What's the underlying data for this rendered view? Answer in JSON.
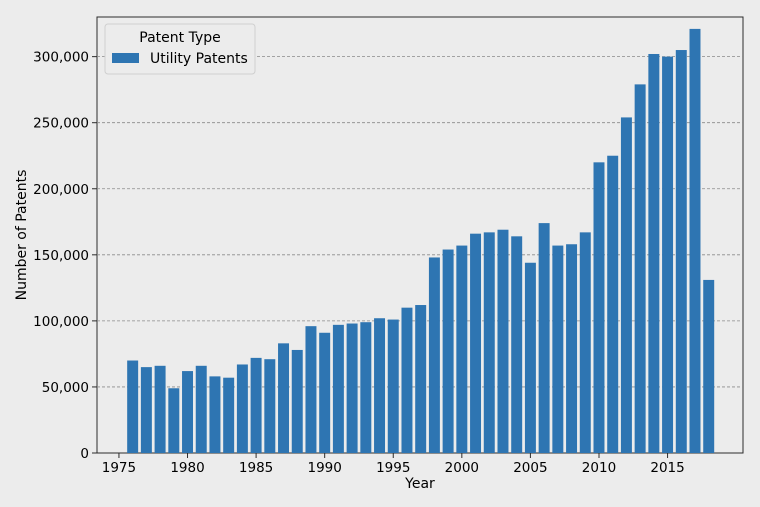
{
  "chart_data": {
    "type": "bar",
    "xlabel": "Year",
    "ylabel": "Number of Patents",
    "xlim": [
      1973.4,
      2020.5
    ],
    "ylim": [
      0,
      330000
    ],
    "xticks": [
      1975,
      1980,
      1985,
      1990,
      1995,
      2000,
      2005,
      2010,
      2015
    ],
    "yticks": [
      0,
      50000,
      100000,
      150000,
      200000,
      250000,
      300000
    ],
    "ytick_labels": [
      "0",
      "50,000",
      "100,000",
      "150,000",
      "200,000",
      "250,000",
      "300,000"
    ],
    "grid": "y-dashed",
    "legend": {
      "title": "Patent Type",
      "position": "top-left"
    },
    "series": [
      {
        "name": "Utility Patents",
        "color": "#2e75b2",
        "x": [
          1976,
          1977,
          1978,
          1979,
          1980,
          1981,
          1982,
          1983,
          1984,
          1985,
          1986,
          1987,
          1988,
          1989,
          1990,
          1991,
          1992,
          1993,
          1994,
          1995,
          1996,
          1997,
          1998,
          1999,
          2000,
          2001,
          2002,
          2003,
          2004,
          2005,
          2006,
          2007,
          2008,
          2009,
          2010,
          2011,
          2012,
          2013,
          2014,
          2015,
          2016,
          2017,
          2018
        ],
        "values": [
          70000,
          65000,
          66000,
          49000,
          62000,
          66000,
          58000,
          57000,
          67000,
          72000,
          71000,
          83000,
          78000,
          96000,
          91000,
          97000,
          98000,
          99000,
          102000,
          101000,
          110000,
          112000,
          148000,
          154000,
          157000,
          166000,
          167000,
          169000,
          164000,
          144000,
          174000,
          157000,
          158000,
          167000,
          220000,
          225000,
          254000,
          279000,
          302000,
          300000,
          305000,
          321000,
          131000
        ]
      }
    ]
  }
}
